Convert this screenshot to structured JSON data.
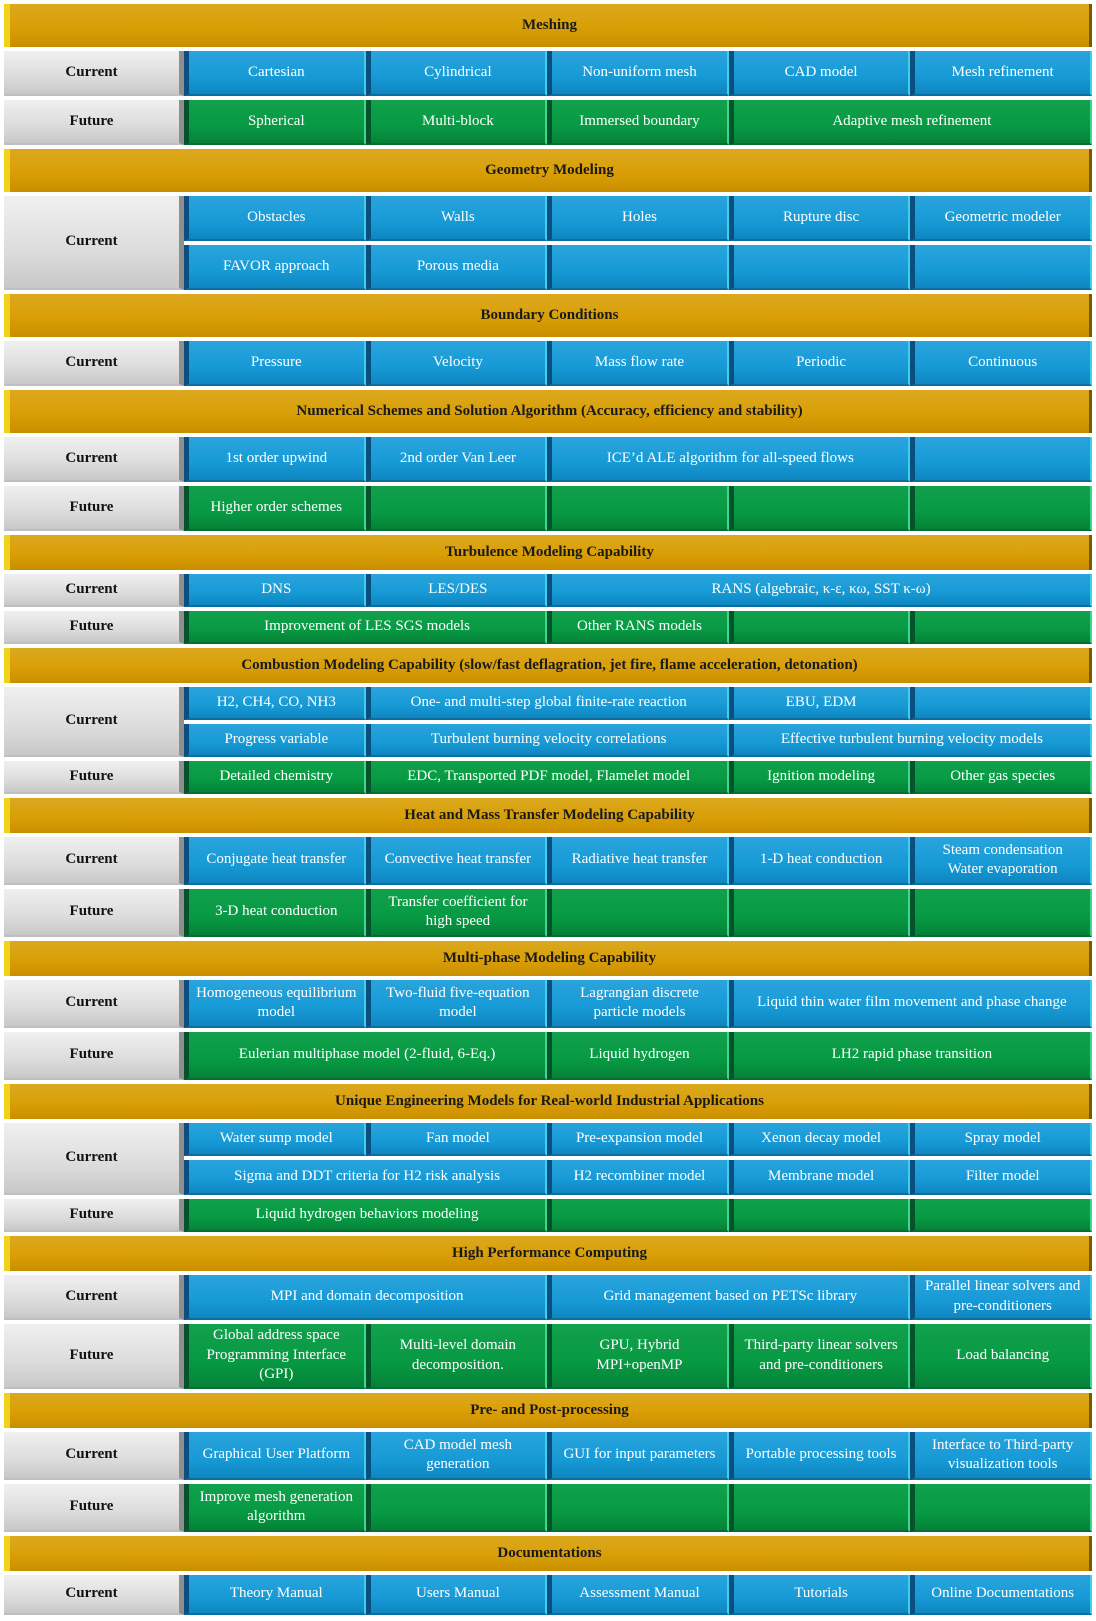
{
  "sections": [
    {
      "title": "Meshing",
      "rows": [
        {
          "label": "Current",
          "type": "current",
          "cells": [
            {
              "text": "Cartesian",
              "span": 1
            },
            {
              "text": "Cylindrical",
              "span": 1
            },
            {
              "text": "Non-uniform mesh",
              "span": 1
            },
            {
              "text": "CAD model",
              "span": 1
            },
            {
              "text": "Mesh refinement",
              "span": 1
            }
          ]
        },
        {
          "label": "Future",
          "type": "future",
          "cells": [
            {
              "text": "Spherical",
              "span": 1
            },
            {
              "text": "Multi-block",
              "span": 1
            },
            {
              "text": "Immersed boundary",
              "span": 1
            },
            {
              "text": "Adaptive mesh refinement",
              "span": 2
            }
          ]
        }
      ]
    },
    {
      "title": "Geometry Modeling",
      "rows": [
        {
          "label": "Current",
          "type": "current",
          "label_rows": 2,
          "cells": [
            {
              "text": "Obstacles",
              "span": 1
            },
            {
              "text": "Walls",
              "span": 1
            },
            {
              "text": "Holes",
              "span": 1
            },
            {
              "text": "Rupture disc",
              "span": 1
            },
            {
              "text": "Geometric modeler",
              "span": 1
            }
          ]
        },
        {
          "type": "current",
          "cells": [
            {
              "text": "FAVOR approach",
              "span": 1
            },
            {
              "text": "Porous media",
              "span": 1
            },
            {
              "text": "",
              "span": 1
            },
            {
              "text": "",
              "span": 1
            },
            {
              "text": "",
              "span": 1
            }
          ]
        }
      ]
    },
    {
      "title": "Boundary Conditions",
      "rows": [
        {
          "label": "Current",
          "type": "current",
          "cells": [
            {
              "text": "Pressure",
              "span": 1
            },
            {
              "text": "Velocity",
              "span": 1
            },
            {
              "text": "Mass flow rate",
              "span": 1
            },
            {
              "text": "Periodic",
              "span": 1
            },
            {
              "text": "Continuous",
              "span": 1
            }
          ]
        }
      ]
    },
    {
      "title": "Numerical Schemes and Solution Algorithm (Accuracy, efficiency and stability)",
      "rows": [
        {
          "label": "Current",
          "type": "current",
          "cells": [
            {
              "text": "1st order upwind",
              "span": 1
            },
            {
              "text": "2nd order Van Leer",
              "span": 1
            },
            {
              "text": "ICE’d ALE algorithm for all-speed flows",
              "span": 2
            },
            {
              "text": "",
              "span": 1
            }
          ]
        },
        {
          "label": "Future",
          "type": "future",
          "cells": [
            {
              "text": "Higher order schemes",
              "span": 1
            },
            {
              "text": "",
              "span": 1
            },
            {
              "text": "",
              "span": 1
            },
            {
              "text": "",
              "span": 1
            },
            {
              "text": "",
              "span": 1
            }
          ]
        }
      ]
    },
    {
      "title": "Turbulence Modeling Capability",
      "rows": [
        {
          "label": "Current",
          "type": "current",
          "cells": [
            {
              "text": "DNS",
              "span": 1
            },
            {
              "text": "LES/DES",
              "span": 1
            },
            {
              "text": "RANS (algebraic, κ-ε, κω, SST κ-ω)",
              "span": 3
            }
          ]
        },
        {
          "label": "Future",
          "type": "future",
          "cells": [
            {
              "text": "Improvement of LES SGS models",
              "span": 2
            },
            {
              "text": "Other RANS models",
              "span": 1
            },
            {
              "text": "",
              "span": 1
            },
            {
              "text": "",
              "span": 1
            }
          ]
        }
      ]
    },
    {
      "title": "Combustion Modeling Capability (slow/fast deflagration, jet fire, flame acceleration, detonation)",
      "rows": [
        {
          "label": "Current",
          "type": "current",
          "label_rows": 2,
          "cells": [
            {
              "text": "H2, CH4, CO, NH3",
              "span": 1
            },
            {
              "text": "One- and multi-step global  finite-rate reaction",
              "span": 2
            },
            {
              "text": "EBU, EDM",
              "span": 1
            },
            {
              "text": "",
              "span": 1
            }
          ]
        },
        {
          "type": "current",
          "cells": [
            {
              "text": "Progress variable",
              "span": 1
            },
            {
              "text": "Turbulent burning velocity correlations",
              "span": 2
            },
            {
              "text": "Effective turbulent burning velocity models",
              "span": 2
            }
          ]
        },
        {
          "label": "Future",
          "type": "future",
          "cells": [
            {
              "text": "Detailed chemistry",
              "span": 1
            },
            {
              "text": "EDC, Transported PDF model, Flamelet model",
              "span": 2
            },
            {
              "text": "Ignition modeling",
              "span": 1
            },
            {
              "text": "Other gas species",
              "span": 1
            }
          ]
        }
      ]
    },
    {
      "title": "Heat and Mass Transfer Modeling Capability",
      "rows": [
        {
          "label": "Current",
          "type": "current",
          "cells": [
            {
              "text": "Conjugate heat transfer",
              "span": 1
            },
            {
              "text": "Convective heat transfer",
              "span": 1
            },
            {
              "text": "Radiative heat transfer",
              "span": 1
            },
            {
              "text": "1-D heat conduction",
              "span": 1
            },
            {
              "text": "Steam condensation\nWater evaporation",
              "span": 1
            }
          ]
        },
        {
          "label": "Future",
          "type": "future",
          "cells": [
            {
              "text": "3-D heat conduction",
              "span": 1
            },
            {
              "text": "Transfer coefficient for high speed",
              "span": 1
            },
            {
              "text": "",
              "span": 1
            },
            {
              "text": "",
              "span": 1
            },
            {
              "text": "",
              "span": 1
            }
          ]
        }
      ]
    },
    {
      "title": "Multi-phase Modeling Capability",
      "rows": [
        {
          "label": "Current",
          "type": "current",
          "cells": [
            {
              "text": "Homogeneous equilibrium model",
              "span": 1
            },
            {
              "text": "Two-fluid five-equation model",
              "span": 1
            },
            {
              "text": "Lagrangian discrete particle  models",
              "span": 1
            },
            {
              "text": "Liquid thin water film movement and phase change",
              "span": 2
            }
          ]
        },
        {
          "label": "Future",
          "type": "future",
          "cells": [
            {
              "text": "Eulerian multiphase model (2-fluid, 6-Eq.)",
              "span": 2
            },
            {
              "text": "Liquid hydrogen",
              "span": 1
            },
            {
              "text": "LH2 rapid phase transition",
              "span": 2
            }
          ]
        }
      ]
    },
    {
      "title": "Unique Engineering Models for Real-world Industrial Applications",
      "rows": [
        {
          "label": "Current",
          "type": "current",
          "label_rows": 2,
          "cells": [
            {
              "text": "Water sump model",
              "span": 1
            },
            {
              "text": "Fan model",
              "span": 1
            },
            {
              "text": "Pre-expansion model",
              "span": 1
            },
            {
              "text": "Xenon decay model",
              "span": 1
            },
            {
              "text": "Spray model",
              "span": 1
            }
          ]
        },
        {
          "type": "current",
          "cells": [
            {
              "text": "Sigma and DDT criteria for H2 risk analysis",
              "span": 2
            },
            {
              "text": "H2 recombiner model",
              "span": 1
            },
            {
              "text": "Membrane model",
              "span": 1
            },
            {
              "text": "Filter model",
              "span": 1
            }
          ]
        },
        {
          "label": "Future",
          "type": "future",
          "cells": [
            {
              "text": "Liquid hydrogen behaviors modeling",
              "span": 2
            },
            {
              "text": "",
              "span": 1
            },
            {
              "text": "",
              "span": 1
            },
            {
              "text": "",
              "span": 1
            }
          ]
        }
      ]
    },
    {
      "title": "High Performance Computing",
      "rows": [
        {
          "label": "Current",
          "type": "current",
          "cells": [
            {
              "text": "MPI and domain decomposition",
              "span": 2
            },
            {
              "text": "Grid management based on PETSc library",
              "span": 2
            },
            {
              "text": "Parallel linear solvers and pre-conditioners",
              "span": 1
            }
          ]
        },
        {
          "label": "Future",
          "type": "future",
          "cells": [
            {
              "text": "Global address space Programming Interface (GPI)",
              "span": 1
            },
            {
              "text": "Multi-level domain decomposition.",
              "span": 1
            },
            {
              "text": "GPU, Hybrid MPI+openMP",
              "span": 1
            },
            {
              "text": "Third-party linear solvers and pre-conditioners",
              "span": 1
            },
            {
              "text": "Load balancing",
              "span": 1
            }
          ]
        }
      ]
    },
    {
      "title": "Pre- and Post-processing",
      "rows": [
        {
          "label": "Current",
          "type": "current",
          "cells": [
            {
              "text": "Graphical User Platform",
              "span": 1
            },
            {
              "text": "CAD model mesh generation",
              "span": 1
            },
            {
              "text": "GUI for input parameters",
              "span": 1
            },
            {
              "text": "Portable processing tools",
              "span": 1
            },
            {
              "text": "Interface to Third-party visualization tools",
              "span": 1
            }
          ]
        },
        {
          "label": "Future",
          "type": "future",
          "cells": [
            {
              "text": "Improve mesh generation algorithm",
              "span": 1
            },
            {
              "text": "",
              "span": 1
            },
            {
              "text": "",
              "span": 1
            },
            {
              "text": "",
              "span": 1
            },
            {
              "text": "",
              "span": 1
            }
          ]
        }
      ]
    },
    {
      "title": "Documentations",
      "rows": [
        {
          "label": "Current",
          "type": "current",
          "cells": [
            {
              "text": "Theory Manual",
              "span": 1
            },
            {
              "text": "Users Manual",
              "span": 1
            },
            {
              "text": "Assessment Manual",
              "span": 1
            },
            {
              "text": "Tutorials",
              "span": 1
            },
            {
              "text": "Online Documentations",
              "span": 1
            }
          ]
        }
      ]
    }
  ]
}
